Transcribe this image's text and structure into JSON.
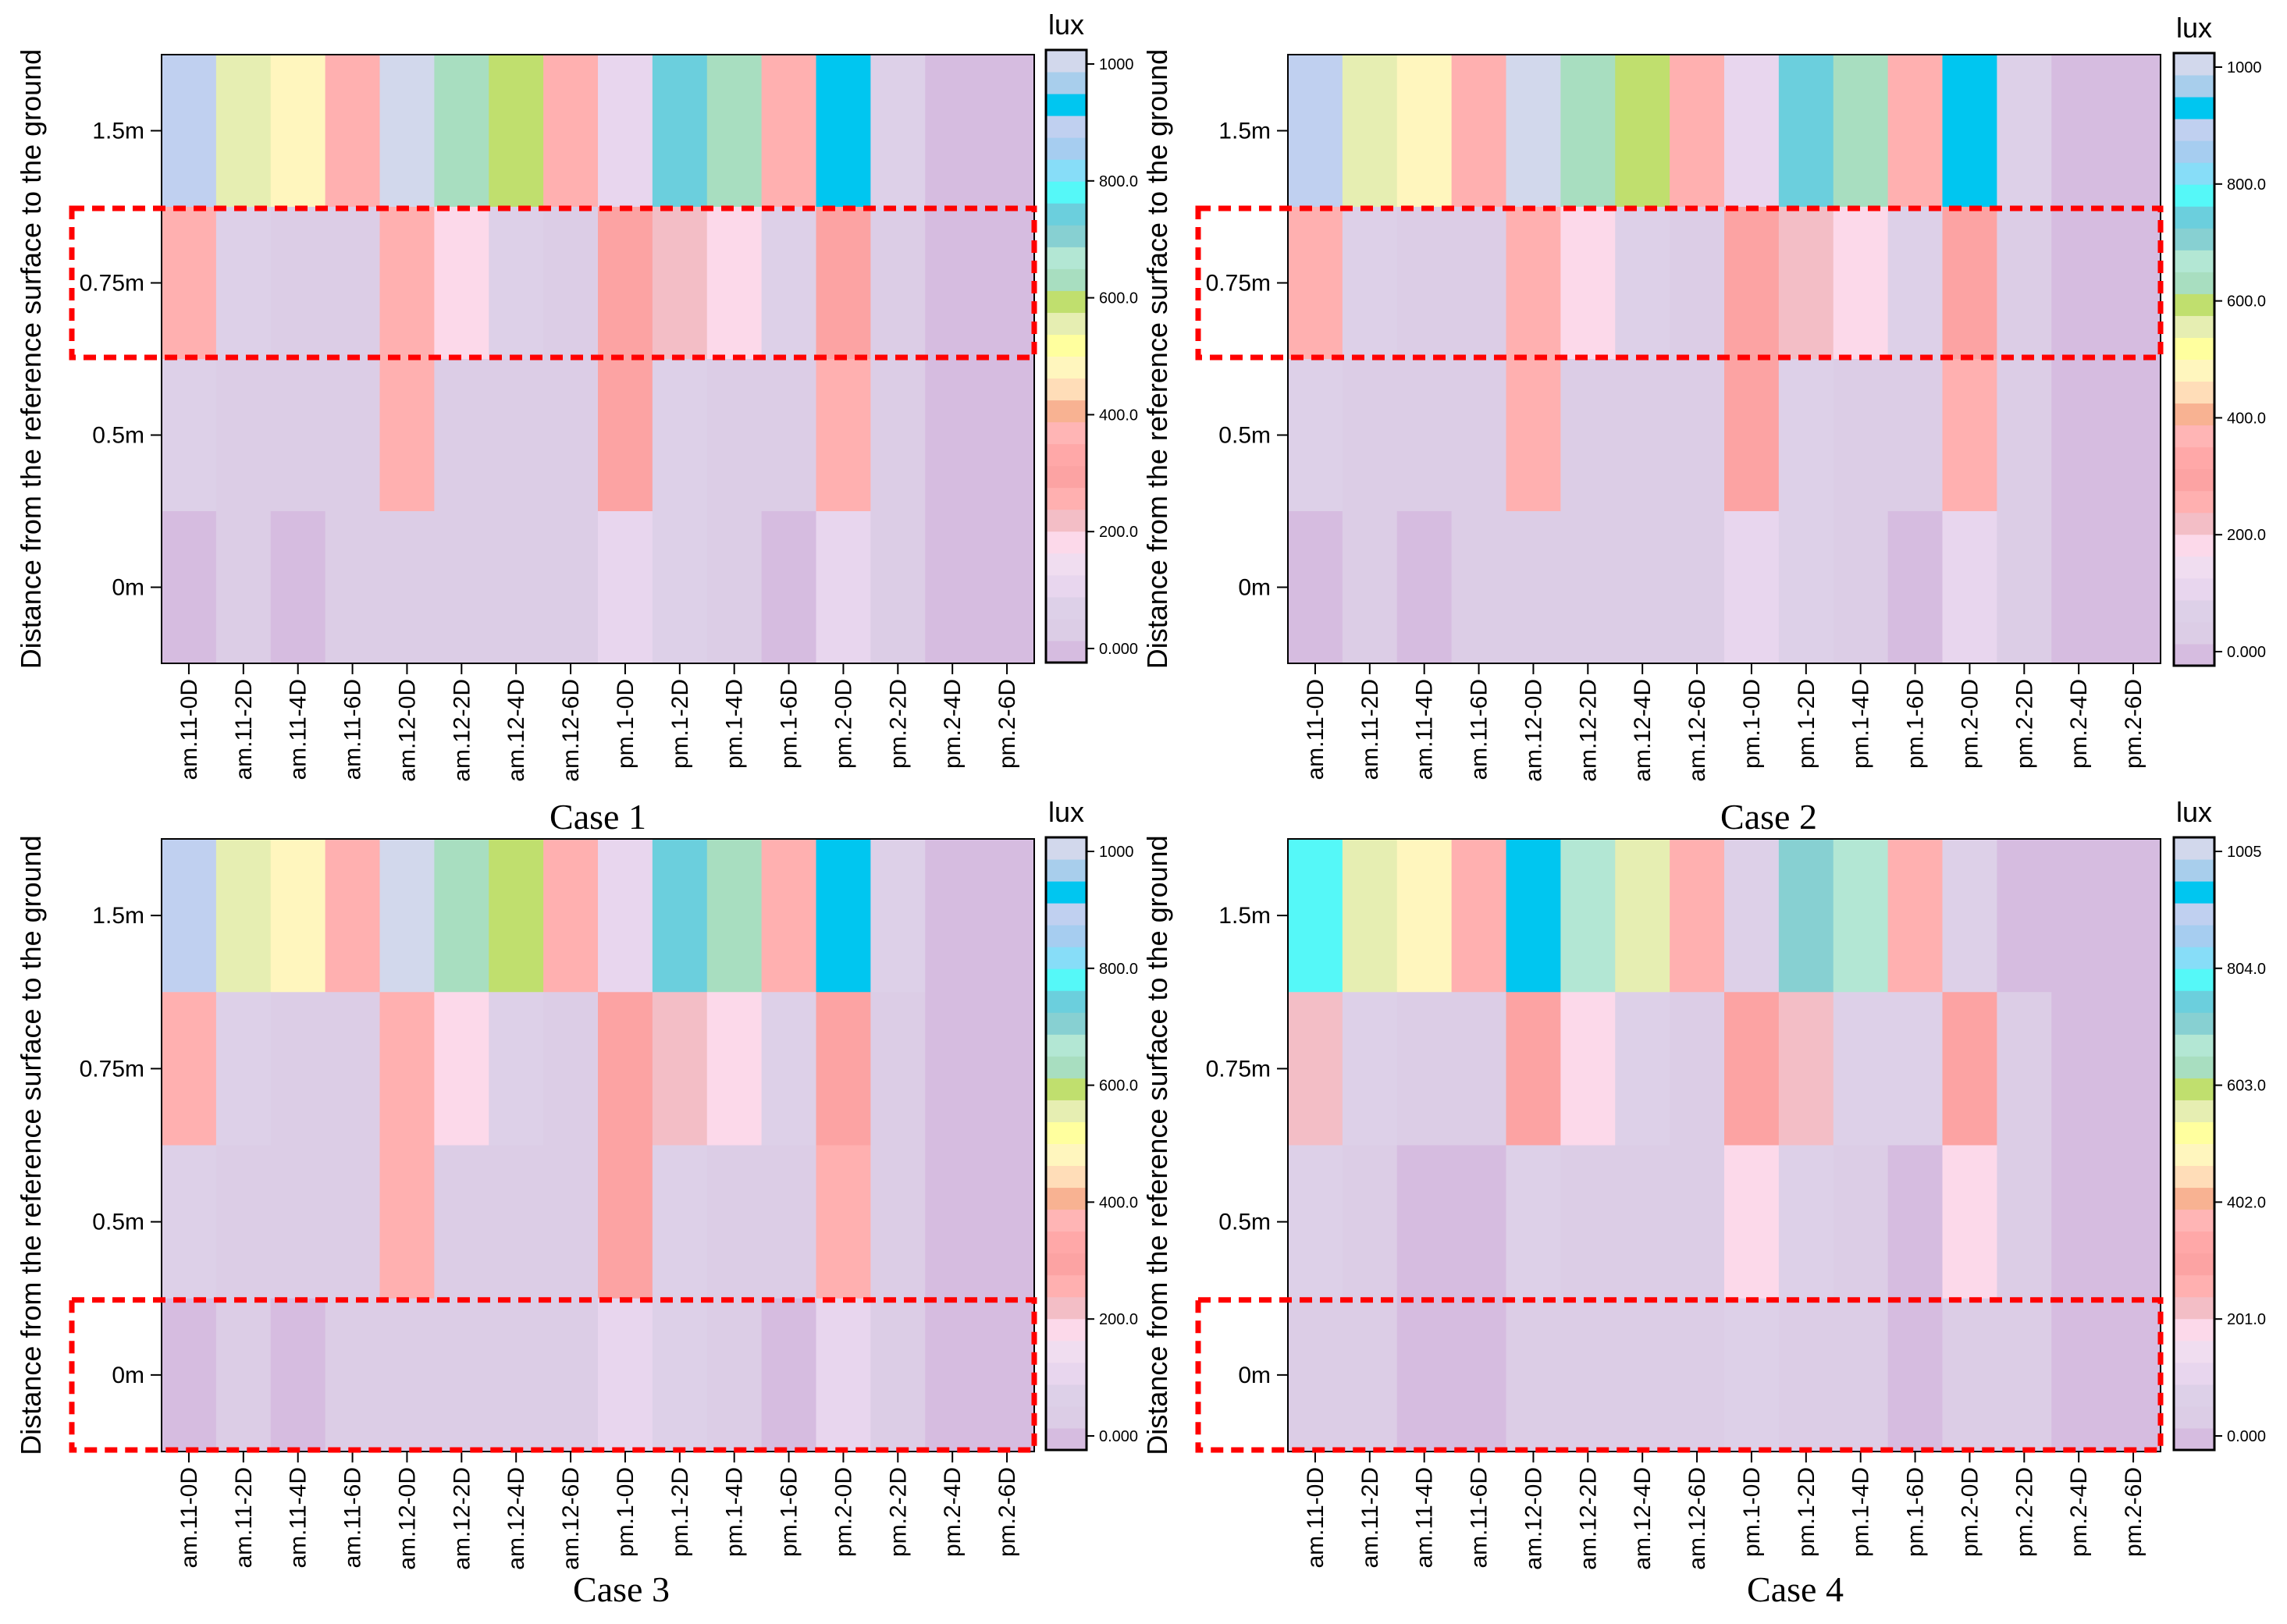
{
  "chart_data": [
    {
      "type": "heatmap",
      "title": "Case 1",
      "ylabel": "Distance from the reference surface to the ground",
      "colorbar_label": "lux",
      "colorbar_ticks": [
        "1000",
        "800.0",
        "600.0",
        "400.0",
        "200.0",
        "0.000"
      ],
      "colorbar_max": 1000,
      "categories": [
        "am.11-0D",
        "am.11-2D",
        "am.11-4D",
        "am.11-6D",
        "am.12-0D",
        "am.12-2D",
        "am.12-4D",
        "am.12-6D",
        "pm.1-0D",
        "pm.1-2D",
        "pm.1-4D",
        "pm.1-6D",
        "pm.2-0D",
        "pm.2-2D",
        "pm.2-4D",
        "pm.2-6D"
      ],
      "y_categories": [
        "1.5m",
        "0.75m",
        "0.5m",
        "0m"
      ],
      "values": [
        [
          880,
          540,
          480,
          270,
          980,
          640,
          590,
          270,
          110,
          720,
          630,
          270,
          900,
          100,
          30,
          30
        ],
        [
          270,
          80,
          70,
          70,
          280,
          180,
          80,
          70,
          290,
          230,
          190,
          80,
          290,
          40,
          25,
          25
        ],
        [
          80,
          60,
          50,
          50,
          250,
          70,
          40,
          50,
          290,
          80,
          40,
          40,
          250,
          40,
          25,
          25
        ],
        [
          30,
          40,
          30,
          40,
          70,
          60,
          40,
          40,
          120,
          90,
          40,
          30,
          110,
          40,
          25,
          25
        ]
      ],
      "highlighted_rows": [
        "0.75m"
      ]
    },
    {
      "type": "heatmap",
      "title": "Case 2",
      "ylabel": "Distance from the reference surface to the ground",
      "colorbar_label": "lux",
      "colorbar_ticks": [
        "1000",
        "800.0",
        "600.0",
        "400.0",
        "200.0",
        "0.000"
      ],
      "colorbar_max": 1000,
      "categories": [
        "am.11-0D",
        "am.11-2D",
        "am.11-4D",
        "am.11-6D",
        "am.12-0D",
        "am.12-2D",
        "am.12-4D",
        "am.12-6D",
        "pm.1-0D",
        "pm.1-2D",
        "pm.1-4D",
        "pm.1-6D",
        "pm.2-0D",
        "pm.2-2D",
        "pm.2-4D",
        "pm.2-6D"
      ],
      "y_categories": [
        "1.5m",
        "0.75m",
        "0.5m",
        "0m"
      ],
      "values": [
        [
          880,
          540,
          480,
          270,
          980,
          640,
          590,
          270,
          110,
          720,
          630,
          270,
          900,
          100,
          30,
          30
        ],
        [
          270,
          80,
          70,
          70,
          280,
          180,
          80,
          70,
          290,
          230,
          190,
          80,
          290,
          40,
          25,
          25
        ],
        [
          80,
          60,
          50,
          50,
          250,
          70,
          40,
          50,
          290,
          80,
          40,
          40,
          250,
          40,
          25,
          25
        ],
        [
          30,
          40,
          30,
          40,
          70,
          60,
          40,
          40,
          120,
          90,
          40,
          30,
          110,
          40,
          25,
          25
        ]
      ],
      "highlighted_rows": [
        "0.75m"
      ]
    },
    {
      "type": "heatmap",
      "title": "Case 3",
      "ylabel": "Distance from the reference surface to the ground",
      "colorbar_label": "lux",
      "colorbar_ticks": [
        "1000",
        "800.0",
        "600.0",
        "400.0",
        "200.0",
        "0.000"
      ],
      "colorbar_max": 1000,
      "categories": [
        "am.11-0D",
        "am.11-2D",
        "am.11-4D",
        "am.11-6D",
        "am.12-0D",
        "am.12-2D",
        "am.12-4D",
        "am.12-6D",
        "pm.1-0D",
        "pm.1-2D",
        "pm.1-4D",
        "pm.1-6D",
        "pm.2-0D",
        "pm.2-2D",
        "pm.2-4D",
        "pm.2-6D"
      ],
      "y_categories": [
        "1.5m",
        "0.75m",
        "0.5m",
        "0m"
      ],
      "values": [
        [
          880,
          540,
          480,
          270,
          980,
          640,
          590,
          270,
          110,
          720,
          630,
          270,
          900,
          100,
          30,
          30
        ],
        [
          270,
          80,
          70,
          70,
          280,
          180,
          80,
          70,
          290,
          230,
          190,
          80,
          290,
          40,
          25,
          25
        ],
        [
          80,
          60,
          50,
          50,
          250,
          70,
          40,
          50,
          290,
          80,
          40,
          40,
          250,
          40,
          25,
          25
        ],
        [
          30,
          40,
          30,
          40,
          70,
          60,
          40,
          40,
          120,
          90,
          40,
          30,
          110,
          40,
          25,
          25
        ]
      ],
      "highlighted_rows": [
        "0m"
      ]
    },
    {
      "type": "heatmap",
      "title": "Case 4",
      "ylabel": "Distance from the reference surface to the ground",
      "colorbar_label": "lux",
      "colorbar_ticks": [
        "1005",
        "804.0",
        "603.0",
        "402.0",
        "201.0",
        "0.000"
      ],
      "colorbar_max": 1005,
      "categories": [
        "am.11-0D",
        "am.11-2D",
        "am.11-4D",
        "am.11-6D",
        "am.12-0D",
        "am.12-2D",
        "am.12-4D",
        "am.12-6D",
        "pm.1-0D",
        "pm.1-2D",
        "pm.1-4D",
        "pm.1-6D",
        "pm.2-0D",
        "pm.2-2D",
        "pm.2-4D",
        "pm.2-6D"
      ],
      "y_categories": [
        "1.5m",
        "0.75m",
        "0.5m",
        "0m"
      ],
      "values": [
        [
          760,
          560,
          500,
          270,
          900,
          650,
          570,
          270,
          100,
          700,
          650,
          270,
          100,
          30,
          30,
          30
        ],
        [
          230,
          80,
          70,
          50,
          290,
          180,
          80,
          70,
          290,
          230,
          80,
          80,
          290,
          40,
          25,
          25
        ],
        [
          80,
          50,
          30,
          30,
          80,
          50,
          40,
          40,
          180,
          100,
          40,
          30,
          180,
          40,
          25,
          25
        ],
        [
          50,
          40,
          30,
          30,
          40,
          40,
          40,
          40,
          80,
          60,
          40,
          30,
          60,
          40,
          25,
          25
        ]
      ],
      "highlighted_rows": [
        "0m"
      ]
    }
  ]
}
